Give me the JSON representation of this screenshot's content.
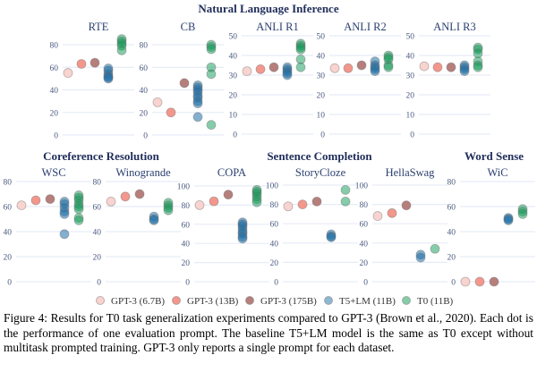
{
  "chart_data": [
    {
      "type": "scatter",
      "group": "Natural Language Inference",
      "title": "RTE",
      "yticks": [
        0,
        20,
        40,
        60,
        80
      ],
      "ylim": [
        0,
        85
      ],
      "gpt3_6_7b": 55,
      "gpt3_13b": 63,
      "gpt3_175b": 64,
      "t5_lm": [
        59,
        57,
        54,
        52,
        51,
        50
      ],
      "t0": [
        85,
        83,
        81,
        79,
        75
      ]
    },
    {
      "type": "scatter",
      "group": "Natural Language Inference",
      "title": "CB",
      "yticks": [
        0,
        20,
        40,
        60,
        80
      ],
      "ylim": [
        0,
        85
      ],
      "gpt3_6_7b": 29,
      "gpt3_13b": 20,
      "gpt3_175b": 46,
      "t5_lm": [
        44,
        42,
        40,
        38,
        35,
        33,
        30,
        28,
        16
      ],
      "t0": [
        80,
        78,
        76,
        60,
        54,
        9
      ]
    },
    {
      "type": "scatter",
      "group": "Natural Language Inference",
      "title": "ANLI R1",
      "yticks": [
        0,
        10,
        20,
        30,
        40,
        50
      ],
      "ylim": [
        0,
        50
      ],
      "gpt3_6_7b": 32,
      "gpt3_13b": 33,
      "gpt3_175b": 34,
      "t5_lm": [
        34,
        33,
        32,
        31,
        30
      ],
      "t0": [
        46,
        45,
        44,
        43,
        38,
        34
      ]
    },
    {
      "type": "scatter",
      "group": "Natural Language Inference",
      "title": "ANLI R2",
      "yticks": [
        0,
        10,
        20,
        30,
        40,
        50
      ],
      "ylim": [
        0,
        50
      ],
      "gpt3_6_7b": 33.5,
      "gpt3_13b": 33.5,
      "gpt3_175b": 35,
      "t5_lm": [
        37,
        35,
        34,
        33,
        32
      ],
      "t0": [
        40,
        39,
        38,
        35,
        34
      ]
    },
    {
      "type": "scatter",
      "group": "Natural Language Inference",
      "title": "ANLI R3",
      "yticks": [
        0,
        10,
        20,
        30,
        40,
        50
      ],
      "ylim": [
        0,
        50
      ],
      "gpt3_6_7b": 34.5,
      "gpt3_13b": 34,
      "gpt3_175b": 34,
      "t5_lm": [
        35,
        34,
        33,
        32
      ],
      "t0": [
        44,
        43,
        41,
        37,
        35,
        34
      ]
    },
    {
      "type": "scatter",
      "group": "Coreference Resolution",
      "title": "WSC",
      "yticks": [
        0,
        20,
        40,
        60,
        80
      ],
      "ylim": [
        0,
        80
      ],
      "gpt3_6_7b": 61,
      "gpt3_13b": 65,
      "gpt3_175b": 66,
      "t5_lm": [
        64,
        62,
        59,
        56,
        54,
        38
      ],
      "t0": [
        69,
        67,
        65,
        62,
        60,
        58,
        51,
        49
      ]
    },
    {
      "type": "scatter",
      "group": "Coreference Resolution",
      "title": "Winogrande",
      "yticks": [
        0,
        20,
        40,
        60,
        80
      ],
      "ylim": [
        0,
        80
      ],
      "gpt3_6_7b": 64,
      "gpt3_13b": 68,
      "gpt3_175b": 70,
      "t5_lm": [
        52,
        50,
        49
      ],
      "t0": [
        63,
        61,
        59,
        57
      ]
    },
    {
      "type": "scatter",
      "group": "Sentence Completion",
      "title": "COPA",
      "yticks": [
        0,
        20,
        40,
        60,
        80,
        100
      ],
      "ylim": [
        0,
        100
      ],
      "gpt3_6_7b": 80,
      "gpt3_13b": 84,
      "gpt3_175b": 91,
      "t5_lm": [
        62,
        60,
        58,
        55,
        52,
        50,
        47,
        45
      ],
      "t0": [
        96,
        94,
        92,
        89,
        86,
        83
      ]
    },
    {
      "type": "scatter",
      "group": "Sentence Completion",
      "title": "StoryCloze",
      "yticks": [
        0,
        20,
        40,
        60,
        80,
        100
      ],
      "ylim": [
        0,
        100
      ],
      "gpt3_6_7b": 78,
      "gpt3_13b": 80,
      "gpt3_175b": 83,
      "t5_lm": [
        49,
        47,
        46
      ],
      "t0": [
        95,
        83
      ]
    },
    {
      "type": "scatter",
      "group": "Sentence Completion",
      "title": "HellaSwag",
      "yticks": [
        0,
        20,
        40,
        60,
        80,
        100
      ],
      "ylim": [
        0,
        100
      ],
      "gpt3_6_7b": 68,
      "gpt3_13b": 71,
      "gpt3_175b": 79,
      "t5_lm": [
        28,
        25
      ],
      "t0": [
        34
      ]
    },
    {
      "type": "scatter",
      "group": "Word Sense",
      "title": "WiC",
      "yticks": [
        0,
        20,
        40,
        60,
        80
      ],
      "ylim": [
        0,
        80
      ],
      "gpt3_6_7b": 0,
      "gpt3_13b": 0,
      "gpt3_175b": 0,
      "t5_lm": [
        51,
        50,
        49
      ],
      "t0": [
        58,
        56,
        54
      ]
    }
  ],
  "groups": {
    "nli": "Natural Language Inference",
    "coref": "Coreference Resolution",
    "sent": "Sentence Completion",
    "wsd": "Word Sense"
  },
  "legend": [
    {
      "label": "GPT-3 (6.7B)",
      "color": "#f9d3cf"
    },
    {
      "label": "GPT-3 (13B)",
      "color": "#f3978c"
    },
    {
      "label": "GPT-3 (175B)",
      "color": "#b67f7c"
    },
    {
      "label": "T5+LM (11B)",
      "color": "#1f6fa8"
    },
    {
      "label": "T0 (11B)",
      "color": "#0f9a55"
    }
  ],
  "caption": "Figure 4: Results for T0 task generalization experiments compared to GPT-3 (Brown et al., 2020). Each dot is the performance of one evaluation prompt. The baseline T5+LM model is the same as T0 except without multitask prompted training. GPT-3 only reports a single prompt for each dataset."
}
